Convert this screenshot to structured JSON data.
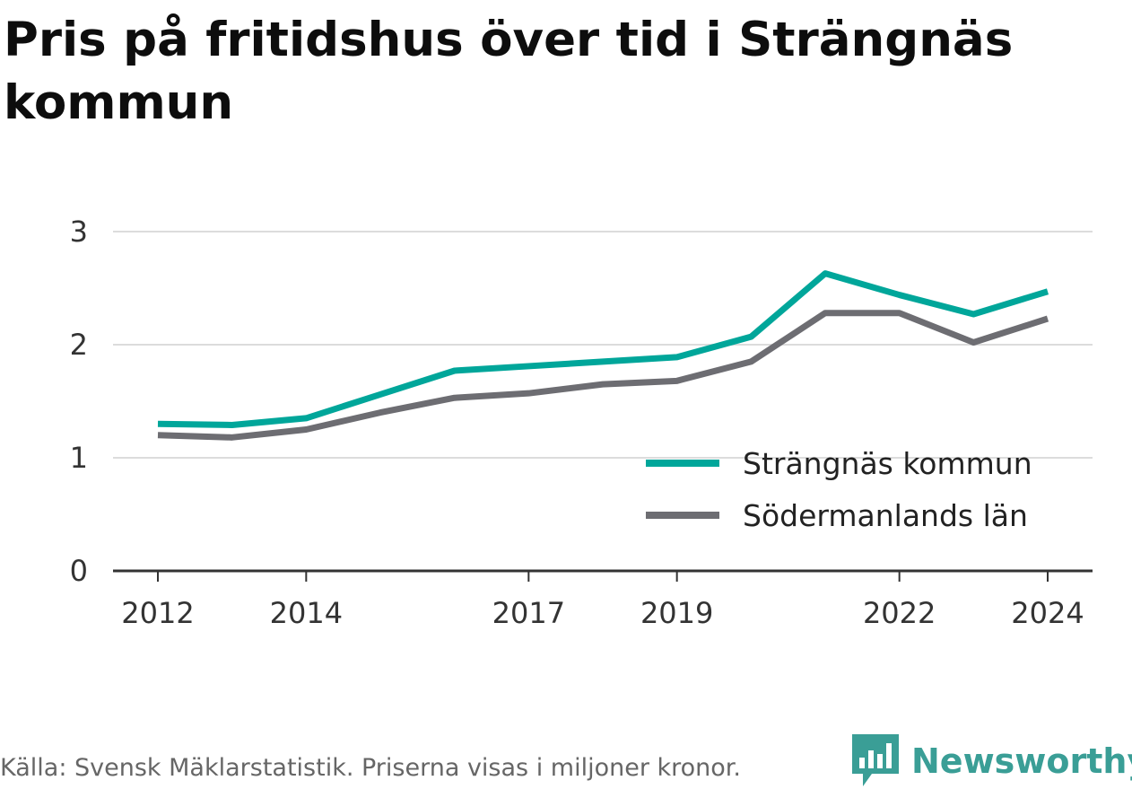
{
  "title": "Pris på fritidshus över tid i Strängnäs kommun",
  "footer": {
    "source": "Källa: Svensk Mäklarstatistik. Priserna visas i miljoner kronor."
  },
  "brand": {
    "name": "Newsworthy",
    "icon": "newsworthy-logo-icon",
    "color": "#3a9e96"
  },
  "chart_data": {
    "type": "line",
    "title": "Pris på fritidshus över tid i Strängnäs kommun",
    "xlabel": "",
    "ylabel": "",
    "x": [
      2012,
      2013,
      2014,
      2015,
      2016,
      2017,
      2018,
      2019,
      2020,
      2021,
      2022,
      2023,
      2024
    ],
    "x_ticks": [
      2012,
      2014,
      2017,
      2019,
      2022,
      2024
    ],
    "y_ticks": [
      0,
      1,
      2,
      3
    ],
    "ylim": [
      0,
      3
    ],
    "grid": true,
    "legend_position": "bottom-right",
    "series": [
      {
        "name": "Strängnäs kommun",
        "color": "#00a69a",
        "values": [
          1.3,
          1.29,
          1.35,
          1.56,
          1.77,
          1.81,
          1.85,
          1.89,
          2.07,
          2.63,
          2.44,
          2.27,
          2.47
        ]
      },
      {
        "name": "Södermanlands län",
        "color": "#6d6d72",
        "values": [
          1.2,
          1.18,
          1.25,
          1.4,
          1.53,
          1.57,
          1.65,
          1.68,
          1.85,
          2.28,
          2.28,
          2.02,
          2.23
        ]
      }
    ]
  }
}
